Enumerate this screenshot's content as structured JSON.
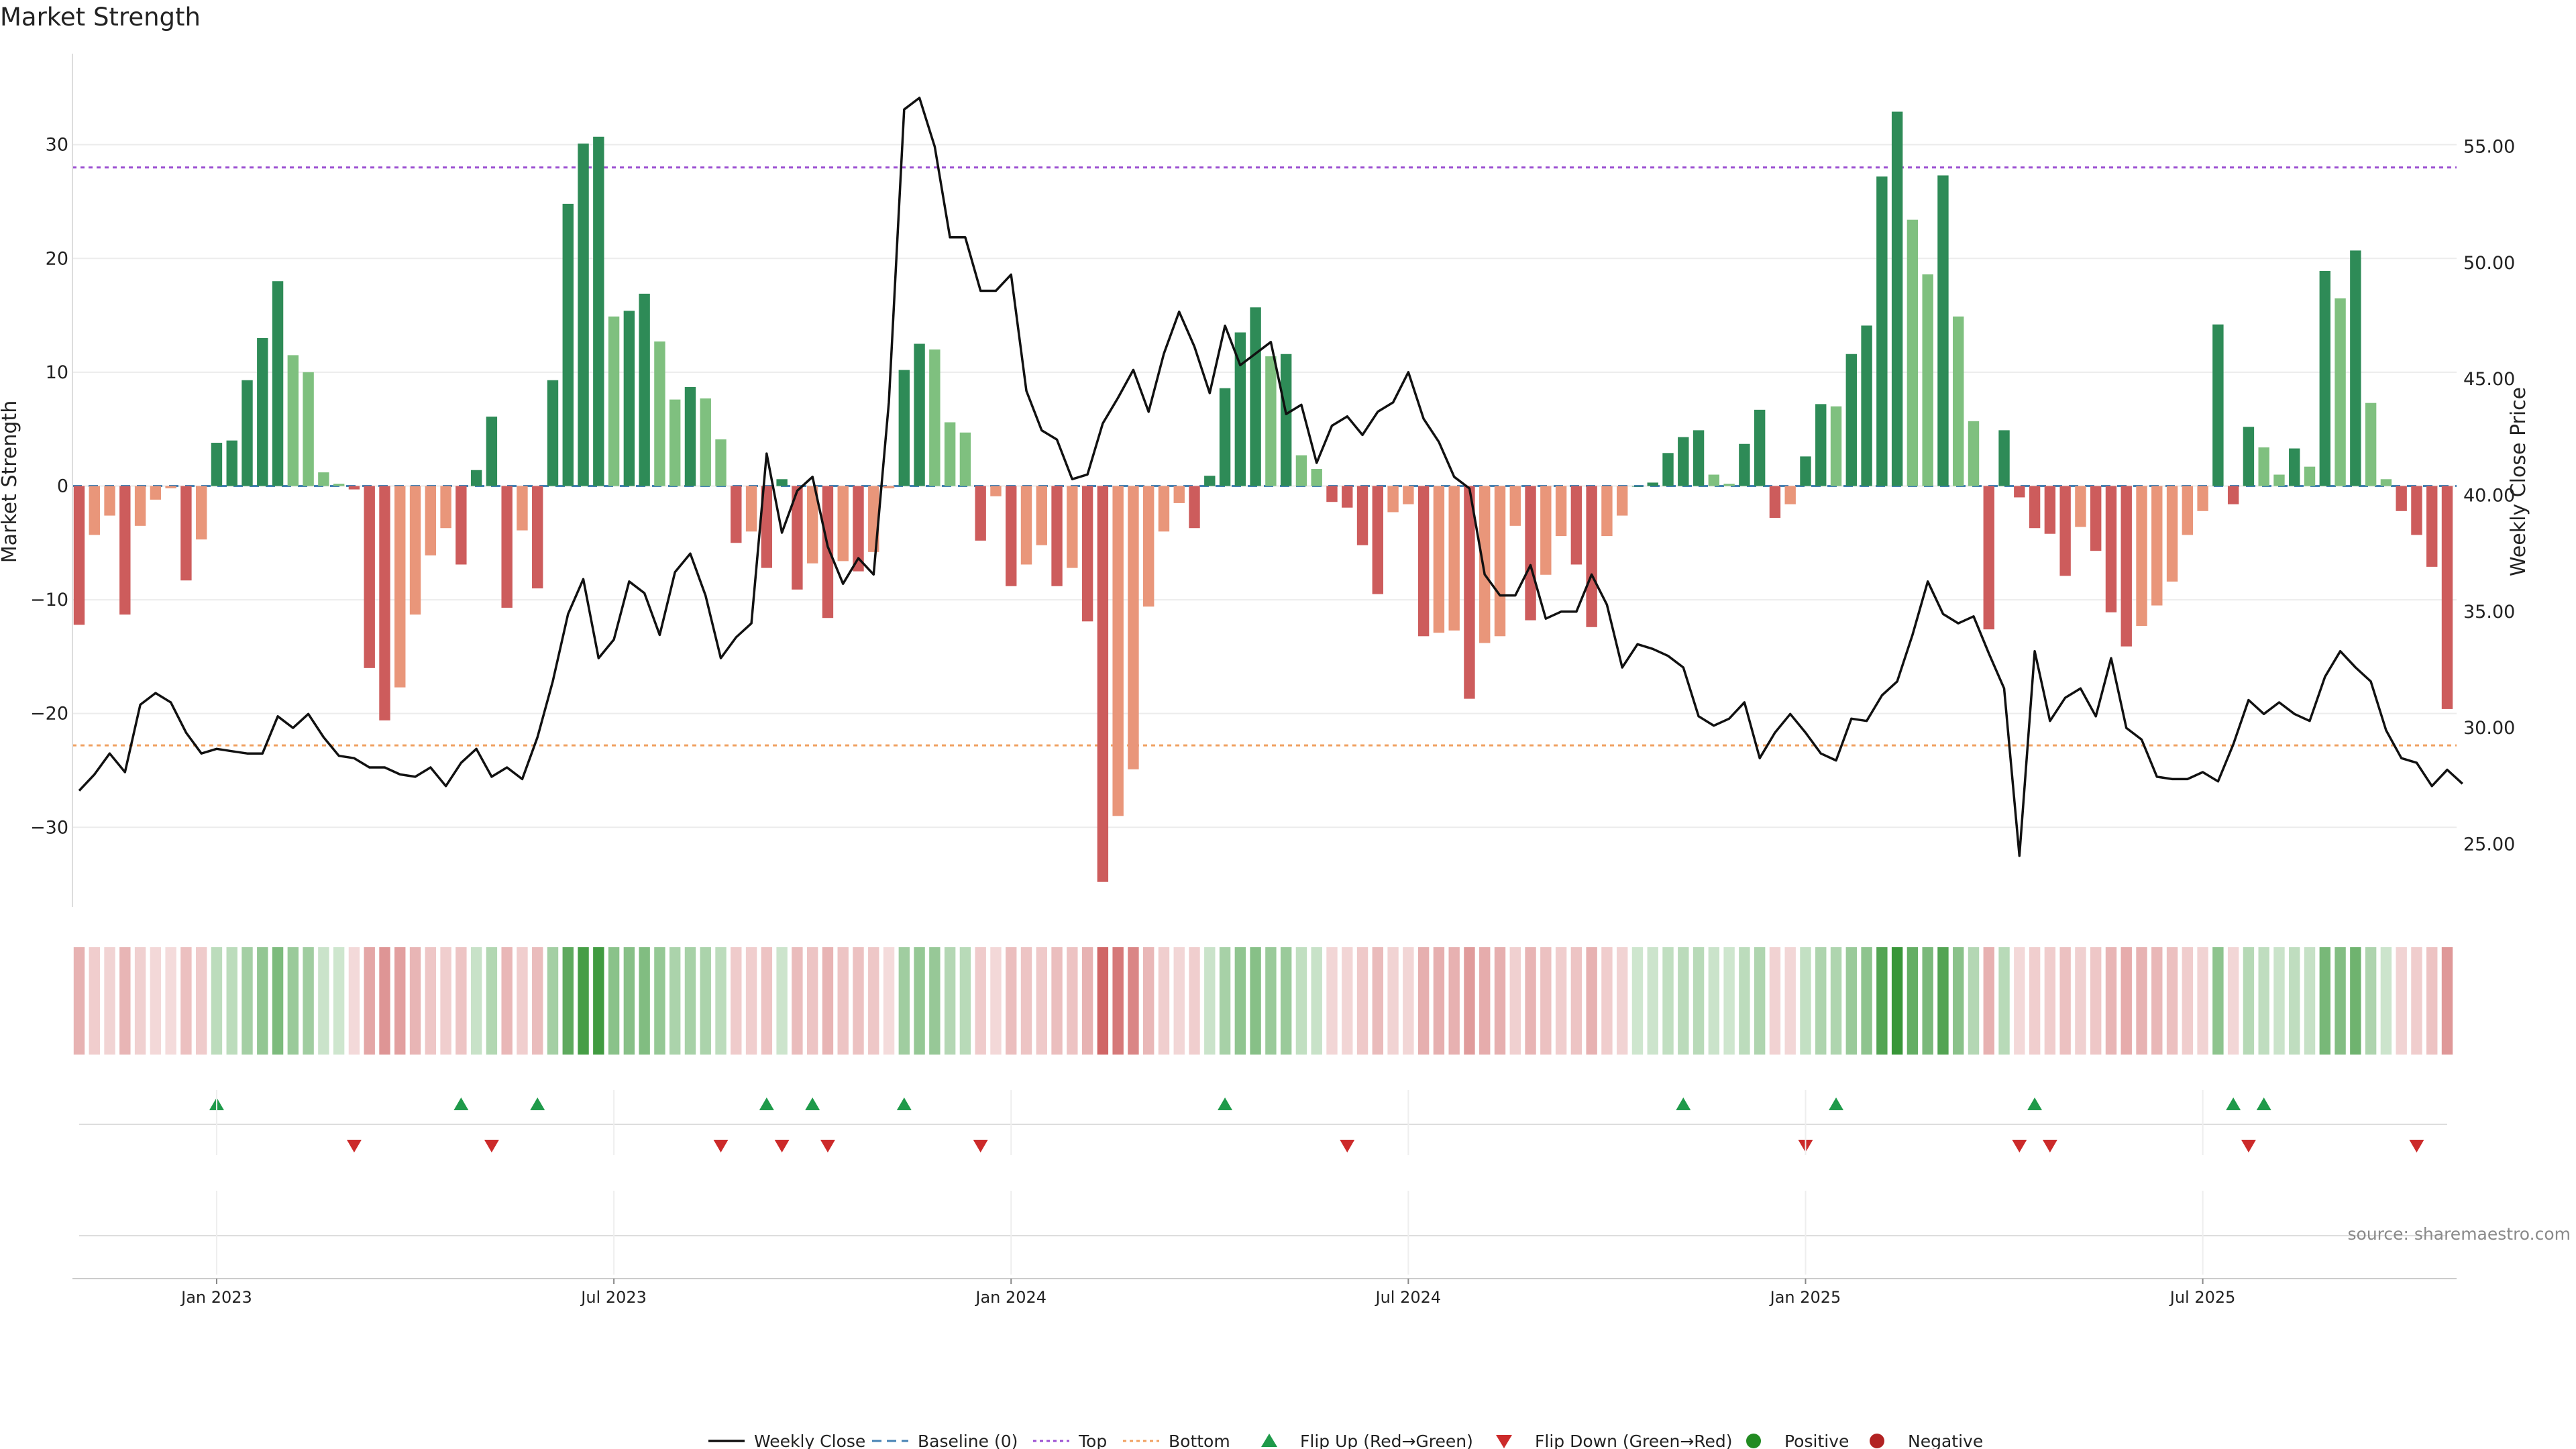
{
  "chart_data": {
    "type": "bar",
    "title": "Market Strength",
    "ylabel_left": "Market Strength",
    "ylabel_right": "Weekly Close Price",
    "source": "source: sharemaestro.com",
    "left_ylim": [
      -37,
      38
    ],
    "right_ylim": [
      22.3,
      59.0
    ],
    "left_ticks": [
      "−30",
      "−20",
      "−10",
      "0",
      "10",
      "20",
      "30"
    ],
    "left_tick_values": [
      -30,
      -20,
      -10,
      0,
      10,
      20,
      30
    ],
    "right_ticks": [
      "25.00",
      "30.00",
      "35.00",
      "40.00",
      "45.00",
      "50.00",
      "55.00"
    ],
    "right_tick_values": [
      25,
      30,
      35,
      40,
      45,
      50,
      55
    ],
    "date_ticks": [
      "Jan 2023",
      "Jul 2023",
      "Jan 2024",
      "Jul 2024",
      "Jan 2025",
      "Jul 2025"
    ],
    "date_tick_weeks": [
      9,
      35,
      61,
      87,
      113,
      139
    ],
    "top_line": 28,
    "bottom_line": -22.8,
    "grid": true,
    "legend_position": "bottom-center",
    "colors": {
      "strong_positive": "#2e8b57",
      "weak_positive": "#7fc07f",
      "strong_negative": "#cd5c5c",
      "weak_negative": "#e9967a",
      "baseline": "#4682b4",
      "top": "#9b4fd1",
      "bottom": "#f0a060",
      "close": "#111111",
      "flip_up": "#1f9a4a",
      "flip_down": "#cc2a2a",
      "positive_marker": "#228b22",
      "negative_marker": "#b22222"
    },
    "series": [
      {
        "name": "Market Strength",
        "start": "2022-11-04",
        "interval": "weekly",
        "values": [
          -12.2,
          -4.3,
          -2.6,
          -11.3,
          -3.5,
          -1.2,
          -0.2,
          -8.3,
          -4.7,
          3.8,
          4.0,
          9.3,
          13.0,
          18.0,
          11.5,
          10.0,
          1.2,
          0.2,
          -0.3,
          -16.0,
          -20.6,
          -17.7,
          -11.3,
          -6.1,
          -3.7,
          -6.9,
          1.4,
          6.1,
          -10.7,
          -3.9,
          -9.0,
          9.3,
          24.8,
          30.1,
          30.7,
          14.9,
          15.4,
          16.9,
          12.7,
          7.6,
          8.7,
          7.7,
          4.1,
          -5.0,
          -4.0,
          -7.2,
          0.6,
          -9.1,
          -6.8,
          -11.6,
          -6.6,
          -7.5,
          -5.8,
          -0.2,
          10.2,
          12.5,
          12.0,
          5.6,
          4.7,
          -4.8,
          -0.9,
          -8.8,
          -6.9,
          -5.2,
          -8.8,
          -7.2,
          -11.9,
          -34.8,
          -29.0,
          -24.9,
          -10.6,
          -4.0,
          -1.5,
          -3.7,
          0.9,
          8.6,
          13.5,
          15.7,
          11.4,
          11.6,
          2.7,
          1.5,
          -1.4,
          -1.9,
          -5.2,
          -9.5,
          -2.3,
          -1.6,
          -13.2,
          -12.9,
          -12.7,
          -18.7,
          -13.8,
          -13.2,
          -3.5,
          -11.8,
          -7.8,
          -4.4,
          -6.9,
          -12.4,
          -4.4,
          -2.6,
          0.0,
          0.3,
          2.9,
          4.3,
          4.9,
          1.0,
          0.2,
          3.7,
          6.7,
          -2.8,
          -1.6,
          2.6,
          7.2,
          7.0,
          11.6,
          14.1,
          27.2,
          32.9,
          23.4,
          18.6,
          27.3,
          14.9,
          5.7,
          -12.6,
          4.9,
          -1.0,
          -3.7,
          -4.2,
          -7.9,
          -3.6,
          -5.7,
          -11.1,
          -14.1,
          -12.3,
          -10.5,
          -8.4,
          -4.3,
          -2.2,
          14.2,
          -1.6,
          5.2,
          3.4,
          1.0,
          3.3,
          1.7,
          18.9,
          16.5,
          20.7,
          7.3,
          0.6,
          -2.2,
          -4.3,
          -7.1,
          -19.6
        ]
      },
      {
        "name": "Weekly Close",
        "values": [
          27.3,
          28.0,
          28.9,
          28.1,
          31.0,
          31.5,
          31.1,
          29.8,
          28.9,
          29.1,
          29.0,
          28.9,
          28.9,
          30.5,
          30.0,
          30.6,
          29.6,
          28.8,
          28.7,
          28.3,
          28.3,
          28.0,
          27.9,
          28.3,
          27.5,
          28.5,
          29.1,
          27.9,
          28.3,
          27.8,
          29.6,
          32.0,
          34.9,
          36.4,
          33.0,
          33.8,
          36.3,
          35.8,
          34.0,
          36.7,
          37.5,
          35.7,
          33.0,
          33.9,
          34.5,
          41.8,
          38.4,
          40.2,
          40.8,
          37.8,
          36.2,
          37.3,
          36.6,
          44.0,
          56.6,
          57.1,
          55.0,
          51.1,
          51.1,
          48.8,
          48.8,
          49.5,
          44.5,
          42.8,
          42.4,
          40.7,
          40.9,
          43.1,
          44.2,
          45.4,
          43.6,
          46.1,
          47.9,
          46.4,
          44.4,
          47.3,
          45.6,
          46.1,
          46.6,
          43.5,
          43.9,
          41.4,
          43.0,
          43.4,
          42.6,
          43.6,
          44.0,
          45.3,
          43.3,
          42.3,
          40.8,
          40.3,
          36.6,
          35.7,
          35.7,
          37.0,
          34.7,
          35.0,
          35.0,
          36.6,
          35.3,
          32.6,
          33.6,
          33.4,
          33.1,
          32.6,
          30.5,
          30.1,
          30.4,
          31.1,
          28.7,
          29.8,
          30.6,
          29.8,
          28.9,
          28.6,
          30.4,
          30.3,
          31.4,
          32.0,
          34.0,
          36.3,
          34.9,
          34.5,
          34.8,
          33.2,
          31.7,
          24.5,
          33.3,
          30.3,
          31.3,
          31.7,
          30.5,
          33.0,
          30.0,
          29.5,
          27.9,
          27.8,
          27.8,
          28.1,
          27.7,
          29.3,
          31.2,
          30.6,
          31.1,
          30.6,
          30.3,
          32.2,
          33.3,
          32.6,
          32.0,
          29.9,
          28.7,
          28.5,
          27.5,
          28.2,
          27.6
        ]
      }
    ],
    "flip_up_weeks": [
      9,
      25,
      30,
      45,
      48,
      54,
      75,
      105,
      115,
      128,
      141,
      143
    ],
    "flip_down_weeks": [
      18,
      27,
      42,
      46,
      49,
      59,
      83,
      113,
      127,
      129,
      142,
      153
    ],
    "legend": [
      {
        "label": "Weekly Close",
        "icon": "solid-line"
      },
      {
        "label": "Baseline (0)",
        "icon": "dashed-line"
      },
      {
        "label": "Top",
        "icon": "dotted-line"
      },
      {
        "label": "Bottom",
        "icon": "dotted-line"
      },
      {
        "label": "Flip Up (Red→Green)",
        "icon": "triangle-up"
      },
      {
        "label": "Flip Down (Green→Red)",
        "icon": "triangle-down"
      },
      {
        "label": "Positive",
        "icon": "circle"
      },
      {
        "label": "Negative",
        "icon": "circle"
      }
    ]
  }
}
